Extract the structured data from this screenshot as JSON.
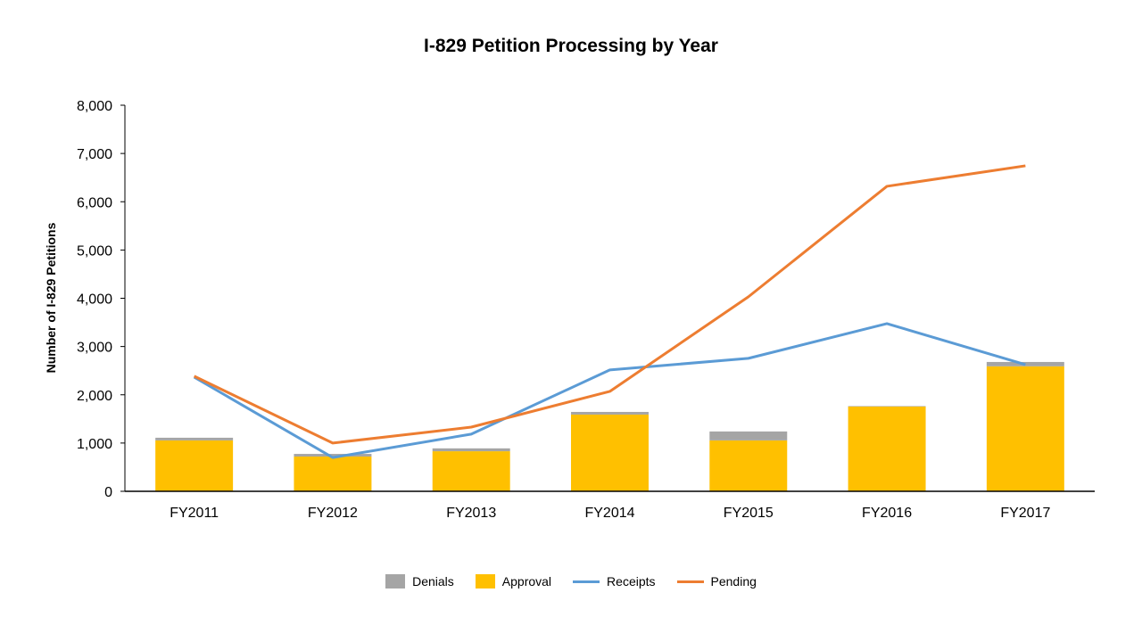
{
  "chart_data": {
    "type": "bar",
    "title": "I-829 Petition Processing by Year",
    "xlabel": "",
    "ylabel": "Number of I-829 Petitions",
    "ylim": [
      0,
      8000
    ],
    "yticks": [
      0,
      1000,
      2000,
      3000,
      4000,
      5000,
      6000,
      7000,
      8000
    ],
    "ytick_labels": [
      "0",
      "1,000",
      "2,000",
      "3,000",
      "4,000",
      "5,000",
      "6,000",
      "7,000",
      "8,000"
    ],
    "grid": false,
    "legend_position": "bottom",
    "categories": [
      "FY2011",
      "FY2012",
      "FY2013",
      "FY2014",
      "FY2015",
      "FY2016",
      "FY2017"
    ],
    "series": [
      {
        "name": "Denials",
        "kind": "stacked-bar",
        "color": "#A5A5A5",
        "values": [
          55,
          55,
          60,
          55,
          185,
          10,
          90
        ]
      },
      {
        "name": "Approval",
        "kind": "stacked-bar",
        "color": "#FFC000",
        "values": [
          1055,
          720,
          830,
          1590,
          1055,
          1755,
          2590
        ]
      },
      {
        "name": "Receipts",
        "kind": "line",
        "color": "#5B9BD5",
        "values": [
          2365,
          700,
          1185,
          2515,
          2755,
          3475,
          2625
        ]
      },
      {
        "name": "Pending",
        "kind": "line",
        "color": "#ED7D31",
        "values": [
          2385,
          1000,
          1330,
          2070,
          4030,
          6320,
          6745
        ]
      }
    ]
  }
}
